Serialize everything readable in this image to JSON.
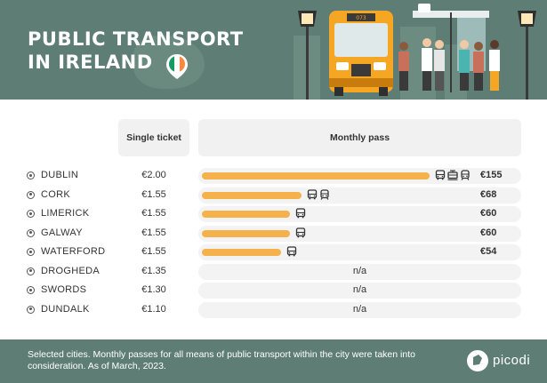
{
  "header": {
    "title_line1": "PUBLIC TRANSPORT",
    "title_line2": "IN IRELAND",
    "bus_number": "073"
  },
  "columns": {
    "single": "Single ticket",
    "monthly": "Monthly pass"
  },
  "chart_data": {
    "type": "bar",
    "title": "PUBLIC TRANSPORT IN IRELAND",
    "xlim": [
      0,
      155
    ],
    "rows": [
      {
        "city": "DUBLIN",
        "single": "€2.00",
        "monthly": 155,
        "monthly_label": "€155",
        "modes": [
          "bus",
          "tram",
          "train"
        ]
      },
      {
        "city": "CORK",
        "single": "€1.55",
        "monthly": 68,
        "monthly_label": "€68",
        "modes": [
          "bus",
          "train"
        ]
      },
      {
        "city": "LIMERICK",
        "single": "€1.55",
        "monthly": 60,
        "monthly_label": "€60",
        "modes": [
          "bus"
        ]
      },
      {
        "city": "GALWAY",
        "single": "€1.55",
        "monthly": 60,
        "monthly_label": "€60",
        "modes": [
          "bus"
        ]
      },
      {
        "city": "WATERFORD",
        "single": "€1.55",
        "monthly": 54,
        "monthly_label": "€54",
        "modes": [
          "bus"
        ]
      },
      {
        "city": "DROGHEDA",
        "single": "€1.35",
        "monthly": null,
        "monthly_label": "n/a",
        "modes": []
      },
      {
        "city": "SWORDS",
        "single": "€1.30",
        "monthly": null,
        "monthly_label": "n/a",
        "modes": []
      },
      {
        "city": "DUNDALK",
        "single": "€1.10",
        "monthly": null,
        "monthly_label": "n/a",
        "modes": []
      }
    ]
  },
  "footer": {
    "note": "Selected cities. Monthly passes for all means of public transport within the city were taken into consideration. As of March, 2023.",
    "brand": "picodi"
  },
  "colors": {
    "header_bg": "#5e7e75",
    "bar": "#f5b24c",
    "track": "#f3f3f3",
    "flag_green": "#169b62",
    "flag_orange": "#ff883e"
  }
}
